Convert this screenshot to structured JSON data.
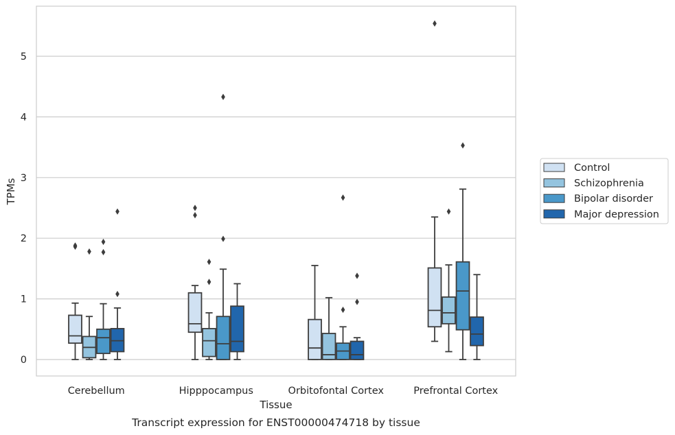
{
  "caption": "Transcript expression for ENST00000474718 by tissue",
  "chart_data": {
    "type": "boxplot",
    "title": "",
    "xlabel": "Tissue",
    "ylabel": "TPMs",
    "ylim": [
      -0.27,
      5.85
    ],
    "yticks": [
      0,
      1,
      2,
      3,
      4,
      5
    ],
    "grid": true,
    "legend_position": "right",
    "categories": [
      "Cerebellum",
      "Hipppocampus",
      "Orbitofontal Cortex",
      "Prefrontal Cortex"
    ],
    "series": [
      {
        "name": "Control",
        "color": "#d0e1f2",
        "boxes": [
          {
            "whislo": 0.0,
            "q1": 0.27,
            "med": 0.39,
            "q3": 0.73,
            "whishi": 0.93,
            "fliers": [
              1.86,
              1.88
            ]
          },
          {
            "whislo": 0.0,
            "q1": 0.45,
            "med": 0.59,
            "q3": 1.1,
            "whishi": 1.22,
            "fliers": [
              2.38,
              2.5
            ]
          },
          {
            "whislo": 0.0,
            "q1": 0.0,
            "med": 0.19,
            "q3": 0.66,
            "whishi": 1.55,
            "fliers": []
          },
          {
            "whislo": 0.3,
            "q1": 0.54,
            "med": 0.81,
            "q3": 1.51,
            "whishi": 2.35,
            "fliers": [
              5.54
            ]
          }
        ]
      },
      {
        "name": "Schizophrenia",
        "color": "#94c4df",
        "boxes": [
          {
            "whislo": 0.0,
            "q1": 0.03,
            "med": 0.2,
            "q3": 0.38,
            "whishi": 0.71,
            "fliers": [
              1.78
            ]
          },
          {
            "whislo": 0.0,
            "q1": 0.05,
            "med": 0.31,
            "q3": 0.51,
            "whishi": 0.77,
            "fliers": [
              1.28,
              1.61
            ]
          },
          {
            "whislo": 0.0,
            "q1": 0.0,
            "med": 0.08,
            "q3": 0.43,
            "whishi": 1.02,
            "fliers": []
          },
          {
            "whislo": 0.13,
            "q1": 0.59,
            "med": 0.77,
            "q3": 1.03,
            "whishi": 1.56,
            "fliers": [
              2.44
            ]
          }
        ]
      },
      {
        "name": "Bipolar disorder",
        "color": "#4a98c9",
        "boxes": [
          {
            "whislo": 0.0,
            "q1": 0.1,
            "med": 0.36,
            "q3": 0.5,
            "whishi": 0.92,
            "fliers": [
              1.77,
              1.94
            ]
          },
          {
            "whislo": 0.0,
            "q1": 0.0,
            "med": 0.26,
            "q3": 0.71,
            "whishi": 1.49,
            "fliers": [
              1.99,
              4.33
            ]
          },
          {
            "whislo": 0.0,
            "q1": 0.0,
            "med": 0.14,
            "q3": 0.27,
            "whishi": 0.54,
            "fliers": [
              0.82,
              2.67
            ]
          },
          {
            "whislo": 0.0,
            "q1": 0.49,
            "med": 1.13,
            "q3": 1.61,
            "whishi": 2.81,
            "fliers": [
              3.53
            ]
          }
        ]
      },
      {
        "name": "Major depression",
        "color": "#2166ac",
        "boxes": [
          {
            "whislo": 0.0,
            "q1": 0.13,
            "med": 0.31,
            "q3": 0.51,
            "whishi": 0.85,
            "fliers": [
              1.08,
              2.44
            ]
          },
          {
            "whislo": 0.0,
            "q1": 0.13,
            "med": 0.3,
            "q3": 0.88,
            "whishi": 1.25,
            "fliers": []
          },
          {
            "whislo": 0.0,
            "q1": 0.0,
            "med": 0.08,
            "q3": 0.3,
            "whishi": 0.36,
            "fliers": [
              0.95,
              1.38
            ]
          },
          {
            "whislo": 0.0,
            "q1": 0.23,
            "med": 0.42,
            "q3": 0.7,
            "whishi": 1.4,
            "fliers": []
          }
        ]
      }
    ]
  }
}
